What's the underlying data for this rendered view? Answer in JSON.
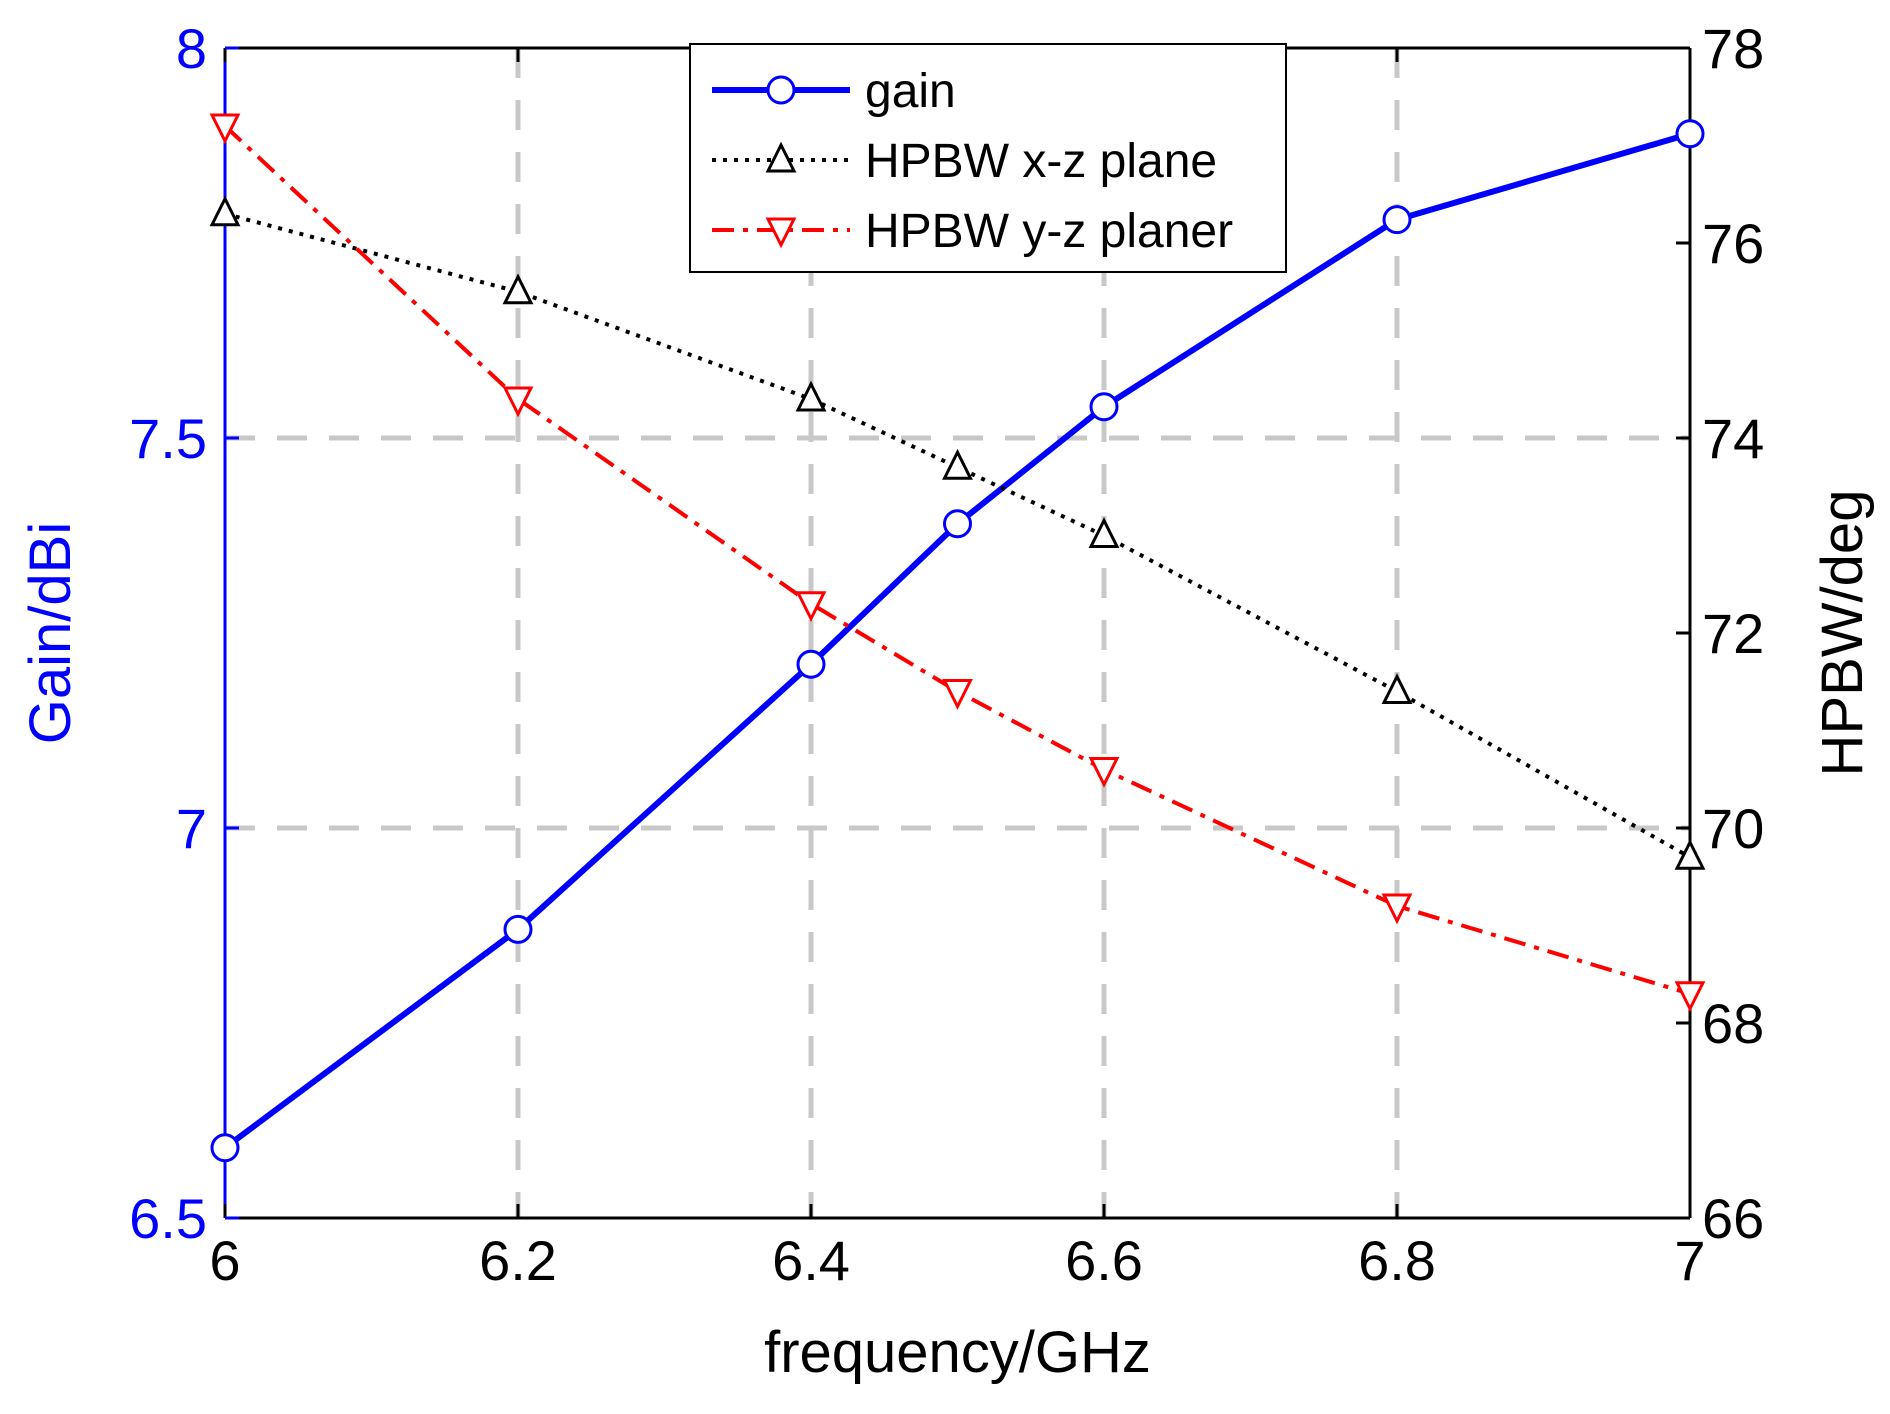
{
  "chart_data": {
    "type": "line",
    "xlabel": "frequency/GHz",
    "ylabel_left": "Gain/dBi",
    "ylabel_right": "HPBW/deg",
    "xlim": [
      6,
      7
    ],
    "ylim_left": [
      6.5,
      8
    ],
    "ylim_right": [
      66,
      78
    ],
    "x_ticks": [
      "6",
      "6.2",
      "6.4",
      "6.6",
      "6.8",
      "7"
    ],
    "y_left_ticks": [
      "6.5",
      "7",
      "7.5",
      "8"
    ],
    "y_right_ticks": [
      "66",
      "68",
      "70",
      "72",
      "74",
      "76",
      "78"
    ],
    "grid": true,
    "legend_position": "top-center",
    "colors": {
      "left_axis": "#0000ff",
      "right_axis": "#000000",
      "grid": "#c8c8c8"
    },
    "series": [
      {
        "name": "gain",
        "axis": "left",
        "color": "#0000ff",
        "line_style": "solid",
        "marker": "circle",
        "x": [
          6,
          6.2,
          6.4,
          6.5,
          6.6,
          6.8,
          7
        ],
        "values": [
          6.59,
          6.87,
          7.21,
          7.39,
          7.54,
          7.78,
          7.89
        ]
      },
      {
        "name": "HPBW x-z plane",
        "axis": "right",
        "color": "#000000",
        "line_style": "dotted",
        "marker": "triangle-up",
        "x": [
          6,
          6.2,
          6.4,
          6.5,
          6.6,
          6.8,
          7
        ],
        "values": [
          76.3,
          75.5,
          74.4,
          73.7,
          73.0,
          71.4,
          69.7
        ]
      },
      {
        "name": "HPBW y-z planer",
        "axis": "right",
        "color": "#ff0000",
        "line_style": "dashdot",
        "marker": "triangle-down",
        "x": [
          6,
          6.2,
          6.4,
          6.5,
          6.6,
          6.8,
          7
        ],
        "values": [
          77.2,
          74.4,
          72.3,
          71.4,
          70.6,
          69.2,
          68.3
        ]
      }
    ]
  }
}
